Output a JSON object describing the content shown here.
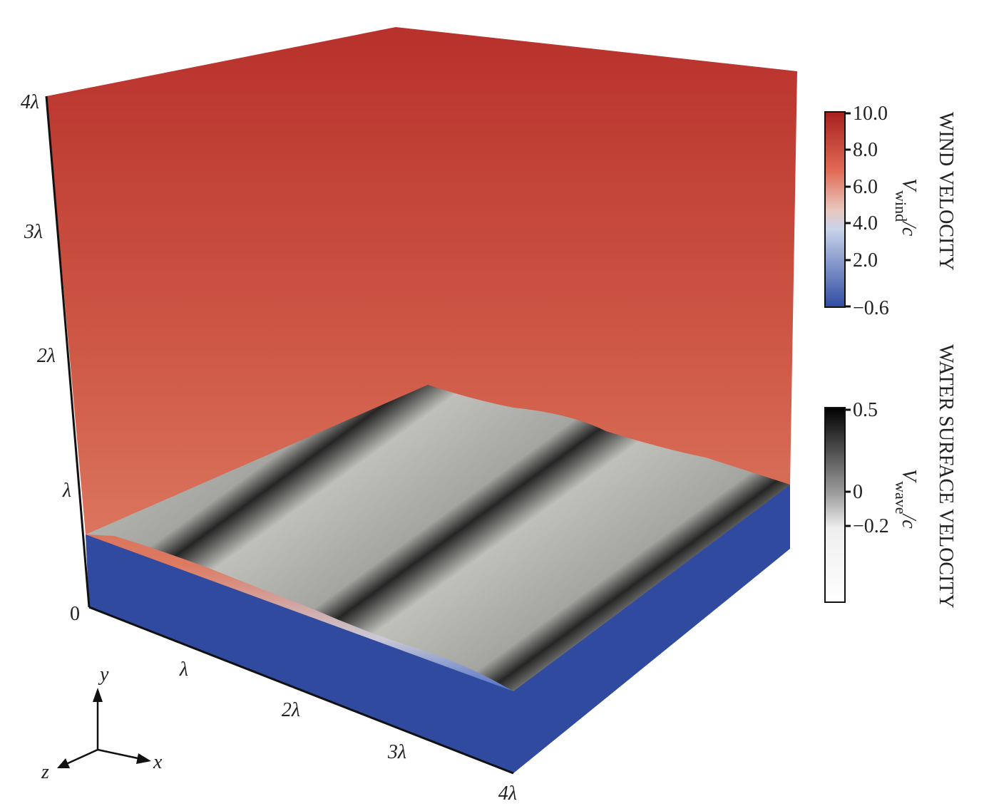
{
  "figure": {
    "vertical_axis": {
      "ticks": [
        "0",
        "λ",
        "2λ",
        "3λ",
        "4λ"
      ]
    },
    "horizontal_axis": {
      "ticks": [
        "λ",
        "2λ",
        "3λ",
        "4λ"
      ]
    },
    "triad": {
      "x": "x",
      "y": "y",
      "z": "z"
    },
    "wind_colorbar": {
      "title": "WIND VELOCITY",
      "symbol": "V",
      "subscript": "wind",
      "suffix": "/c",
      "ticks": [
        "10.0",
        "8.0",
        "6.0",
        "4.0",
        "2.0",
        "−0.6"
      ]
    },
    "water_colorbar": {
      "title": "WATER SURFACE VELOCITY",
      "symbol": "V",
      "subscript": "wave",
      "suffix": "/c",
      "ticks": [
        "0.5",
        "0",
        "−0.2"
      ]
    }
  }
}
